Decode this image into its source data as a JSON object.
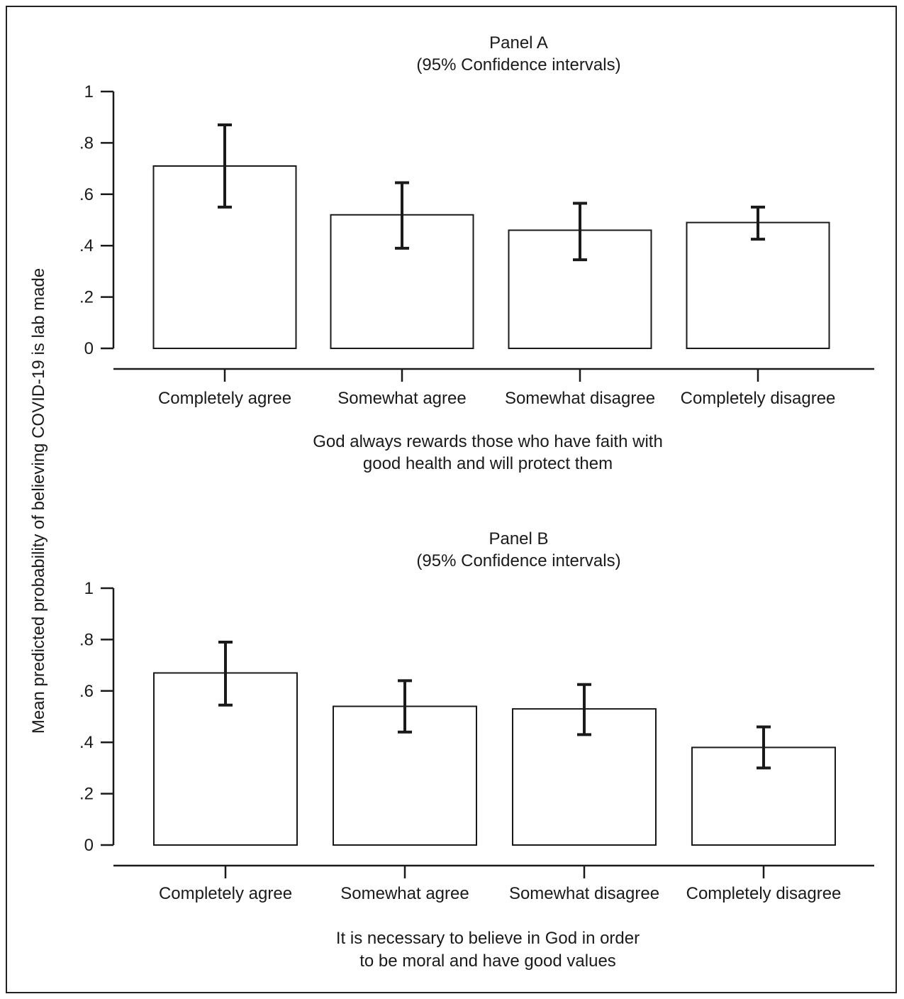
{
  "chart_data": [
    {
      "type": "bar",
      "title": "Panel A",
      "subtitle": "(95% Confidence intervals)",
      "categories": [
        "Completely agree",
        "Somewhat agree",
        "Somewhat disagree",
        "Completely disagree"
      ],
      "values": [
        0.71,
        0.52,
        0.46,
        0.49
      ],
      "ci_low": [
        0.55,
        0.39,
        0.345,
        0.425
      ],
      "ci_high": [
        0.87,
        0.645,
        0.565,
        0.55
      ],
      "xlabel": [
        "God always rewards those who have faith with",
        "good health and will protect them"
      ],
      "ylim": [
        0,
        1
      ],
      "yticks": [
        0,
        0.2,
        0.4,
        0.6,
        0.8,
        1
      ],
      "ytick_labels": [
        "0",
        ".2",
        ".4",
        ".6",
        ".8",
        "1"
      ],
      "grid": false
    },
    {
      "type": "bar",
      "title": "Panel B",
      "subtitle": "(95% Confidence intervals)",
      "categories": [
        "Completely agree",
        "Somewhat agree",
        "Somewhat disagree",
        "Completely disagree"
      ],
      "values": [
        0.67,
        0.54,
        0.53,
        0.38
      ],
      "ci_low": [
        0.545,
        0.44,
        0.43,
        0.3
      ],
      "ci_high": [
        0.79,
        0.64,
        0.625,
        0.46
      ],
      "xlabel": [
        "It is necessary to believe in God in order",
        "to be moral and have good values"
      ],
      "ylim": [
        0,
        1
      ],
      "yticks": [
        0,
        0.2,
        0.4,
        0.6,
        0.8,
        1
      ],
      "ytick_labels": [
        "0",
        ".2",
        ".4",
        ".6",
        ".8",
        "1"
      ],
      "grid": false
    }
  ],
  "shared_ylabel": "Mean predicted probability of believing COVID-19 is lab made"
}
